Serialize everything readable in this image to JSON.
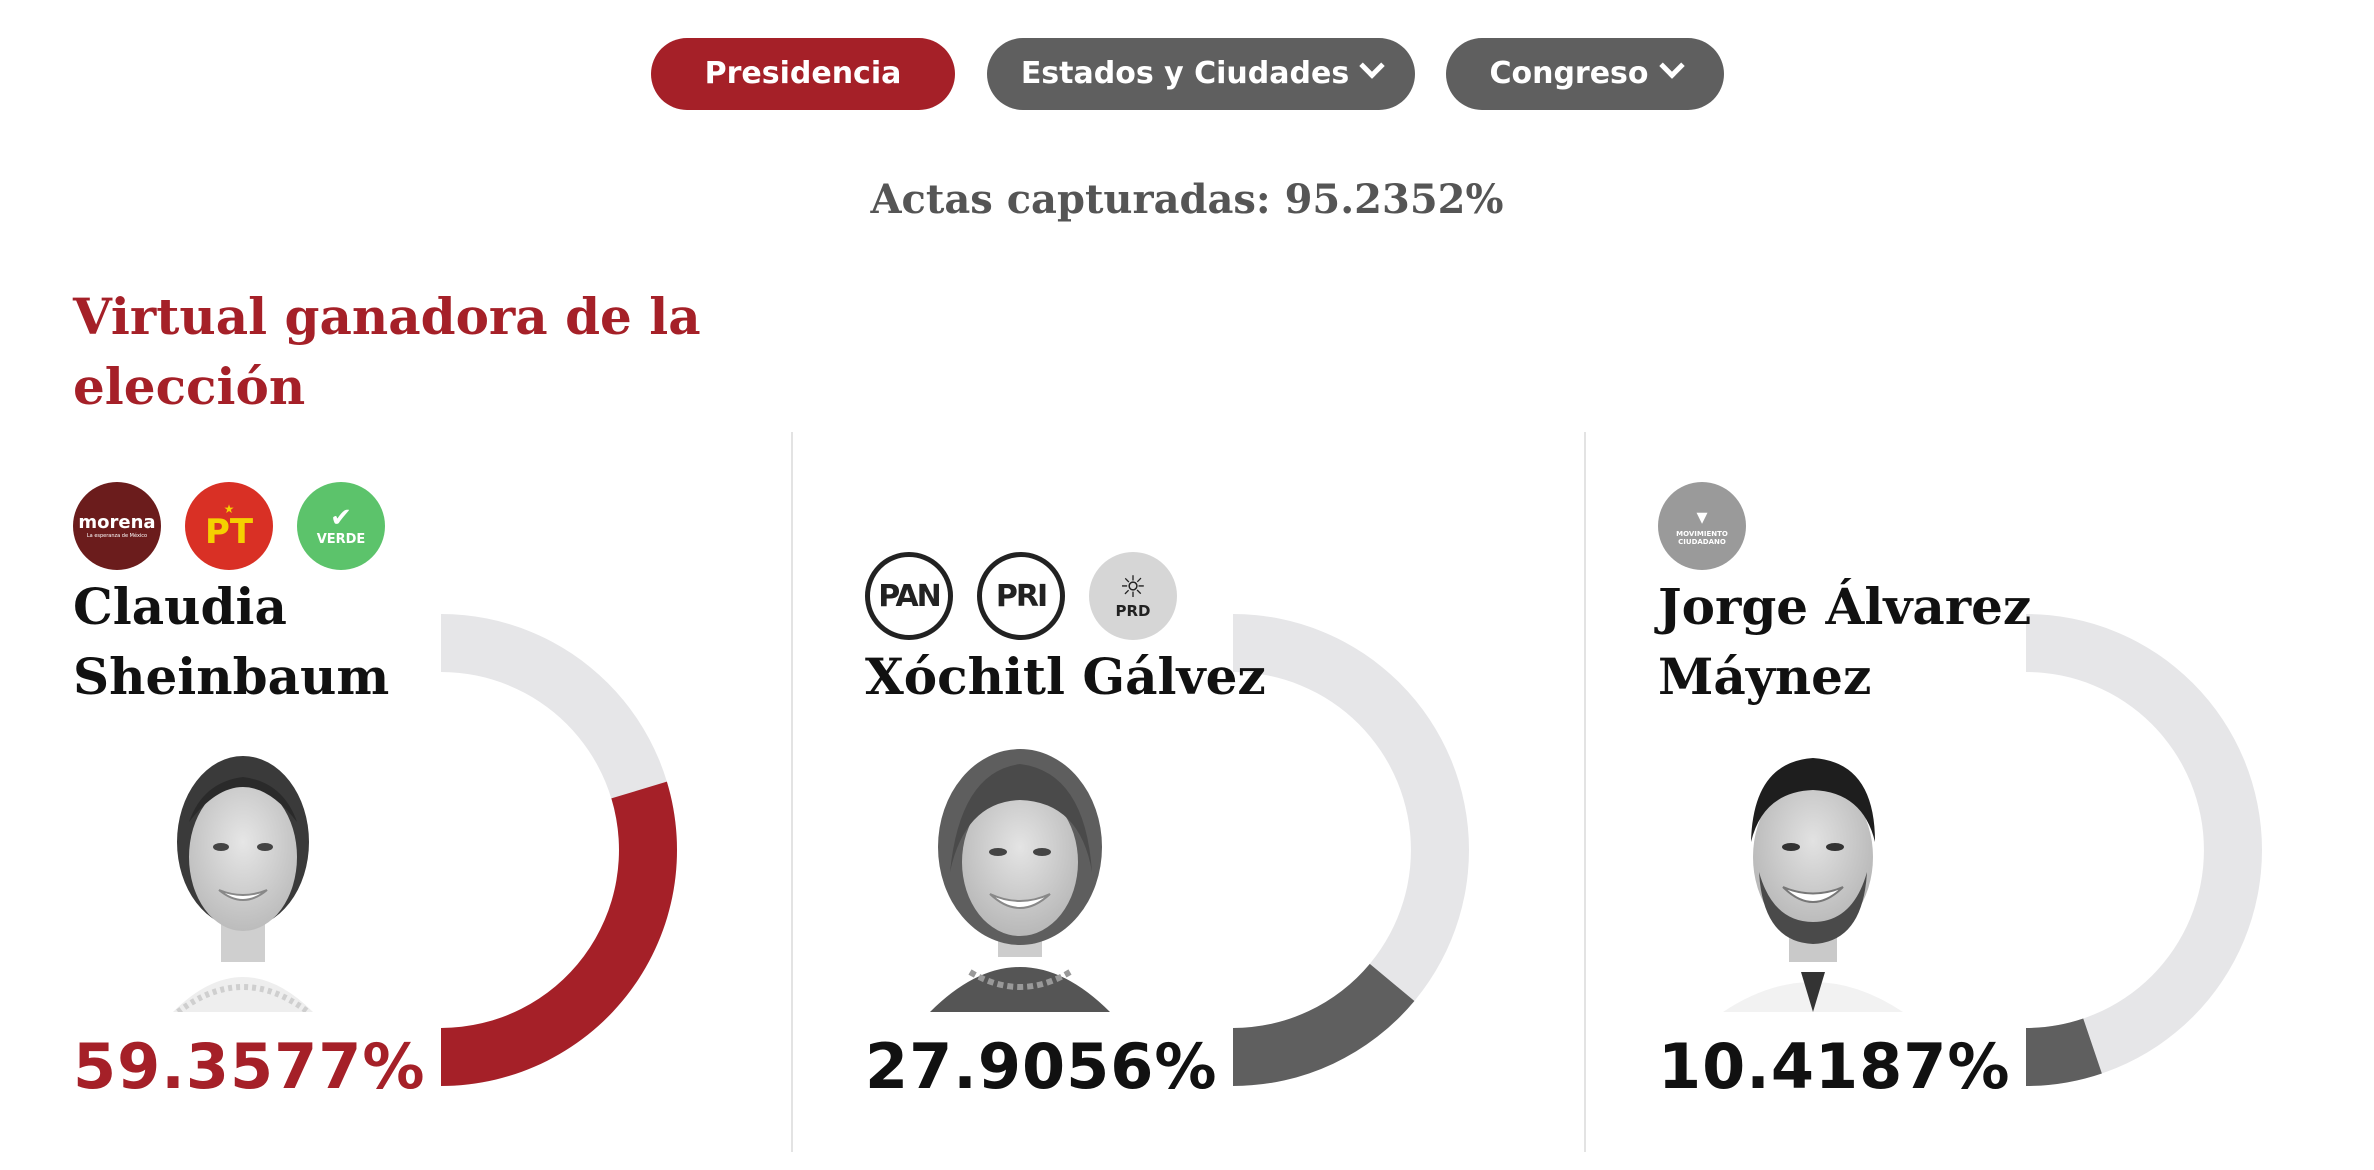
{
  "tabs": [
    {
      "label": "Presidencia",
      "active": true,
      "has_dropdown": false
    },
    {
      "label": "Estados y Ciudades",
      "active": false,
      "has_dropdown": true
    },
    {
      "label": "Congreso",
      "active": false,
      "has_dropdown": true
    }
  ],
  "actas_label": "Actas capturadas: 95.2352%",
  "winner_title": "Virtual ganadora de la elección",
  "colors": {
    "accent_red": "#a52028",
    "tab_gray": "#5f5f5f",
    "gauge_track": "#e6e6e8",
    "gauge_gray": "#5f5f5f"
  },
  "candidates": [
    {
      "name": "Claudia Sheinbaum",
      "percent_label": "59.3577%",
      "percent": 59.3577,
      "winner": true,
      "parties": [
        {
          "icon": "morena-logo",
          "label": "morena",
          "sub": "La esperanza de México"
        },
        {
          "icon": "pt-logo",
          "label": "PT"
        },
        {
          "icon": "verde-logo",
          "label": "VERDE"
        }
      ]
    },
    {
      "name": "Xóchitl Gálvez",
      "percent_label": "27.9056%",
      "percent": 27.9056,
      "winner": false,
      "parties": [
        {
          "icon": "pan-logo",
          "label": "PAN"
        },
        {
          "icon": "pri-logo",
          "label": "PRI"
        },
        {
          "icon": "prd-logo",
          "label": "PRD"
        }
      ]
    },
    {
      "name": "Jorge Álvarez Máynez",
      "percent_label": "10.4187%",
      "percent": 10.4187,
      "winner": false,
      "parties": [
        {
          "icon": "movimiento-ciudadano-logo",
          "label": "MOVIMIENTO CIUDADANO"
        }
      ]
    }
  ]
}
